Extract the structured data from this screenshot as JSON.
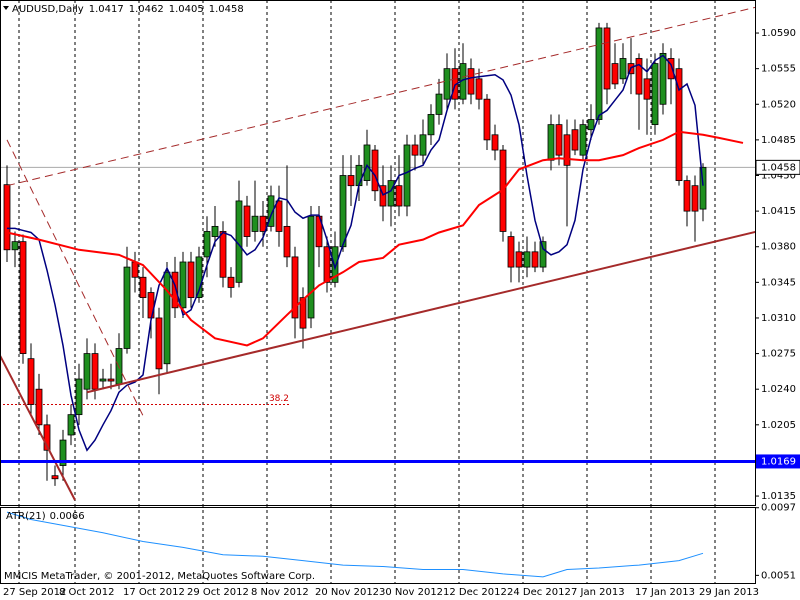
{
  "chart_data": [
    {
      "type": "candlestick",
      "title": "AUDUSD,Daily",
      "categories": [
        "27 Sep 2012",
        null,
        null,
        null,
        null,
        null,
        null,
        "8 Oct 2012",
        null,
        null,
        null,
        null,
        null,
        null,
        null,
        "17 Oct 2012",
        null,
        null,
        null,
        null,
        null,
        null,
        null,
        "29 Oct 2012",
        null,
        null,
        null,
        null,
        null,
        null,
        null,
        "8 Nov 2012",
        null,
        null,
        null,
        null,
        null,
        null,
        null,
        "20 Nov 2012",
        null,
        null,
        null,
        null,
        null,
        null,
        null,
        "30 Nov 2012",
        null,
        null,
        null,
        null,
        null,
        null,
        null,
        "12 Dec 2012",
        null,
        null,
        null,
        null,
        null,
        null,
        null,
        "24 Dec 2012",
        null,
        null,
        null,
        null,
        null,
        null,
        null,
        "7 Jan 2013",
        null,
        null,
        null,
        null,
        null,
        null,
        null,
        "17 Jan 2013",
        null,
        null,
        null,
        null,
        null,
        null,
        null,
        "29 Jan 2013"
      ],
      "open": [
        1.0441,
        1.0377,
        1.0385,
        1.027,
        1.024,
        1.0205,
        1.0155,
        1.0165,
        1.0195,
        1.0215,
        1.024,
        1.0275,
        1.0248,
        1.025,
        1.0245,
        1.028,
        1.0365,
        1.035,
        1.0335,
        1.031,
        1.0265,
        1.0355,
        1.032,
        1.0365,
        1.033,
        1.037,
        1.039,
        1.0395,
        1.035,
        1.0345,
        1.042,
        1.0395,
        1.041,
        1.04,
        1.0425,
        1.04,
        1.037,
        1.033,
        1.031,
        1.041,
        1.038,
        1.0345,
        1.038,
        1.045,
        1.044,
        1.0445,
        1.0475,
        1.044,
        1.042,
        1.044,
        1.042,
        1.048,
        1.047,
        1.049,
        1.051,
        1.0525,
        1.0555,
        1.0525,
        1.0555,
        1.0545,
        1.0525,
        1.049,
        1.0475,
        1.039,
        1.0375,
        1.036,
        1.0375,
        1.036,
        1.0465,
        1.05,
        1.049,
        1.0495,
        1.047,
        1.0495,
        1.0505,
        1.0595,
        1.056,
        1.0545,
        1.056,
        1.0565,
        1.0545,
        1.05,
        1.052,
        1.0565,
        1.0555,
        1.0445,
        1.044,
        1.0417
      ],
      "high": [
        1.046,
        1.0395,
        1.0392,
        1.0285,
        1.0255,
        1.0215,
        1.0165,
        1.02,
        1.0225,
        1.0265,
        1.029,
        1.0285,
        1.026,
        1.0265,
        1.0295,
        1.038,
        1.0375,
        1.036,
        1.034,
        1.032,
        1.0365,
        1.037,
        1.0375,
        1.0375,
        1.038,
        1.041,
        1.042,
        1.0405,
        1.036,
        1.0445,
        1.043,
        1.0445,
        1.0425,
        1.044,
        1.044,
        1.046,
        1.038,
        1.034,
        1.042,
        1.042,
        1.039,
        1.0395,
        1.047,
        1.047,
        1.047,
        1.0495,
        1.048,
        1.046,
        1.046,
        1.047,
        1.049,
        1.049,
        1.0505,
        1.052,
        1.0545,
        1.057,
        1.0575,
        1.058,
        1.0565,
        1.0555,
        1.053,
        1.05,
        1.048,
        1.0395,
        1.0385,
        1.039,
        1.0385,
        1.039,
        1.051,
        1.051,
        1.0505,
        1.0505,
        1.0505,
        1.052,
        1.06,
        1.06,
        1.058,
        1.058,
        1.0585,
        1.057,
        1.0565,
        1.057,
        1.058,
        1.0575,
        1.0565,
        1.045,
        1.045,
        1.0462
      ],
      "low": [
        1.0365,
        1.036,
        1.0265,
        1.0215,
        1.0195,
        1.015,
        1.0145,
        1.015,
        1.0185,
        1.0205,
        1.023,
        1.023,
        1.024,
        1.024,
        1.024,
        1.0275,
        1.0335,
        1.031,
        1.029,
        1.0235,
        1.0255,
        1.031,
        1.031,
        1.032,
        1.0325,
        1.035,
        1.038,
        1.034,
        1.033,
        1.034,
        1.038,
        1.0385,
        1.038,
        1.0395,
        1.038,
        1.036,
        1.029,
        1.028,
        1.03,
        1.036,
        1.0335,
        1.034,
        1.0375,
        1.042,
        1.0425,
        1.044,
        1.0425,
        1.0405,
        1.04,
        1.041,
        1.041,
        1.0455,
        1.046,
        1.048,
        1.05,
        1.0515,
        1.0515,
        1.052,
        1.052,
        1.0515,
        1.0475,
        1.0465,
        1.0385,
        1.0345,
        1.0345,
        1.035,
        1.0355,
        1.0355,
        1.0455,
        1.046,
        1.04,
        1.047,
        1.0465,
        1.0485,
        1.05,
        1.052,
        1.0535,
        1.054,
        1.053,
        1.0495,
        1.049,
        1.049,
        1.051,
        1.052,
        1.044,
        1.04,
        1.0385,
        1.0405
      ],
      "close": [
        1.0377,
        1.0385,
        1.0275,
        1.0225,
        1.0205,
        1.018,
        1.0152,
        1.019,
        1.0215,
        1.025,
        1.0275,
        1.024,
        1.025,
        1.0248,
        1.028,
        1.036,
        1.035,
        1.033,
        1.031,
        1.026,
        1.0355,
        1.032,
        1.0365,
        1.033,
        1.037,
        1.0395,
        1.04,
        1.035,
        1.034,
        1.0425,
        1.039,
        1.041,
        1.0395,
        1.043,
        1.0395,
        1.037,
        1.031,
        1.03,
        1.041,
        1.038,
        1.0345,
        1.038,
        1.045,
        1.044,
        1.046,
        1.048,
        1.0435,
        1.042,
        1.0445,
        1.042,
        1.048,
        1.047,
        1.049,
        1.051,
        1.053,
        1.0555,
        1.0525,
        1.056,
        1.053,
        1.0525,
        1.0485,
        1.0475,
        1.0395,
        1.036,
        1.036,
        1.0375,
        1.036,
        1.0385,
        1.05,
        1.047,
        1.046,
        1.0475,
        1.05,
        1.0505,
        1.0595,
        1.0535,
        1.054,
        1.0565,
        1.055,
        1.053,
        1.0525,
        1.056,
        1.057,
        1.0545,
        1.0445,
        1.0415,
        1.0415,
        1.0458
      ],
      "up_color": "#1f8f1f",
      "down_color": "#ff0000",
      "ylim": [
        1.01262,
        1.06205
      ],
      "yticks": [
        {
          "value": 1.059,
          "label": "1.0590"
        },
        1.0555,
        {
          "value": 1.052,
          "label": "1.0520"
        },
        1.0485,
        {
          "value": 1.045,
          "label": "1.0450"
        },
        1.0415,
        {
          "value": 1.038,
          "label": "1.0380"
        },
        1.0345,
        {
          "value": 1.031,
          "label": "1.0310"
        },
        1.0275,
        {
          "value": 1.024,
          "label": "1.0240"
        },
        1.0205,
        1.0135
      ],
      "lines": [
        {
          "color": "#000080",
          "values": [
            1.0398,
            1.0398,
            1.0396,
            1.0394,
            1.0387,
            1.0357,
            1.0323,
            1.0283,
            1.0234,
            1.02,
            1.018,
            1.019,
            1.0205,
            1.0219,
            1.0237,
            1.0244,
            1.0247,
            1.0254,
            1.0308,
            1.0342,
            1.0359,
            1.0342,
            1.0313,
            1.0318,
            1.0337,
            1.0362,
            1.0385,
            1.0394,
            1.0391,
            1.0382,
            1.0372,
            1.0377,
            1.0389,
            1.0411,
            1.0428,
            1.0426,
            1.0414,
            1.0408,
            1.0411,
            1.0411,
            1.0387,
            1.0359,
            1.0382,
            1.0401,
            1.0441,
            1.046,
            1.045,
            1.0431,
            1.0435,
            1.045,
            1.0453,
            1.0457,
            1.046,
            1.0475,
            1.0485,
            1.0514,
            1.0539,
            1.0544,
            1.0546,
            1.0547,
            1.0548,
            1.0549,
            1.0544,
            1.0529,
            1.05,
            1.045,
            1.0406,
            1.0378,
            1.0372,
            1.0375,
            1.0382,
            1.0406,
            1.0456,
            1.0487,
            1.0509,
            1.0514,
            1.0524,
            1.0534,
            1.0556,
            1.0559,
            1.0552,
            1.0563,
            1.0568,
            1.0559,
            1.0534,
            1.054,
            1.0519,
            1.044
          ]
        },
        {
          "color": "#ff0000",
          "x": [
            0,
            4,
            9,
            14,
            17,
            20,
            23,
            26,
            30,
            32,
            35,
            37,
            39,
            42,
            44,
            47,
            49,
            52,
            54,
            57,
            59,
            62,
            64,
            67,
            69,
            72,
            74,
            77,
            79,
            82,
            84,
            87,
            89,
            92
          ],
          "values": [
            1.0394,
            1.0387,
            1.0377,
            1.0372,
            1.0362,
            1.0337,
            1.0308,
            1.029,
            1.0283,
            1.029,
            1.0313,
            1.0328,
            1.0342,
            1.0355,
            1.0365,
            1.0369,
            1.0382,
            1.0387,
            1.0394,
            1.0401,
            1.0421,
            1.0436,
            1.0456,
            1.0465,
            1.0467,
            1.0465,
            1.0465,
            1.047,
            1.0477,
            1.0485,
            1.0493,
            1.049,
            1.0487,
            1.0482
          ]
        }
      ],
      "trendlines": [
        {
          "x": [
            0,
            95
          ],
          "y": [
            1.044,
            1.0618
          ],
          "color": "#a52a2a",
          "dash": true
        },
        {
          "x": [
            10,
            98
          ],
          "y": [
            1.0237,
            1.0403
          ],
          "color": "#a52a2a",
          "dash": false
        },
        {
          "x": [
            -1,
            8.5
          ],
          "y": [
            1.0275,
            1.0131
          ],
          "color": "#a52a2a",
          "dash": false
        },
        {
          "x": [
            0,
            17
          ],
          "y": [
            1.0485,
            1.0214
          ],
          "color": "#a52a2a",
          "dash": true
        }
      ],
      "levels": [
        {
          "value": 1.0169,
          "color": "#0000ff"
        }
      ],
      "fib": {
        "label": "38.2",
        "value": 1.0225,
        "x": [
          -1,
          35.5
        ],
        "color": "#d00000"
      }
    },
    {
      "type": "line",
      "title": "ATR(21)",
      "color": "#1e90ff",
      "x": [
        0,
        3,
        7,
        12,
        17,
        22,
        27,
        32,
        37,
        42,
        47,
        52,
        57,
        62,
        67,
        70,
        74,
        79,
        84,
        87
      ],
      "values": [
        0.0094,
        0.0089,
        0.0085,
        0.008,
        0.0074,
        0.007,
        0.0065,
        0.0064,
        0.0061,
        0.0058,
        0.0057,
        0.0055,
        0.0055,
        0.0052,
        0.005,
        0.0055,
        0.0056,
        0.0058,
        0.0061,
        0.0066
      ],
      "ylim": [
        0.00458,
        0.00975
      ],
      "yticks": [
        0.0097,
        0.0051
      ]
    }
  ],
  "footer": "MMCIS MetaTrader, © 2001-2012, MetaQuotes Software Corp."
}
